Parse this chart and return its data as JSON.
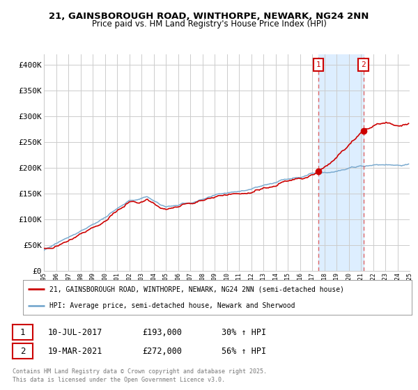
{
  "title_line1": "21, GAINSBOROUGH ROAD, WINTHORPE, NEWARK, NG24 2NN",
  "title_line2": "Price paid vs. HM Land Registry's House Price Index (HPI)",
  "ytick_values": [
    0,
    50000,
    100000,
    150000,
    200000,
    250000,
    300000,
    350000,
    400000
  ],
  "ylabel_ticks": [
    "£0",
    "£50K",
    "£100K",
    "£150K",
    "£200K",
    "£250K",
    "£300K",
    "£350K",
    "£400K"
  ],
  "ylim": [
    0,
    420000
  ],
  "xlim_start": 1995,
  "xlim_end": 2025,
  "sale1_year": 2017.52,
  "sale1_price": 193000,
  "sale2_year": 2021.21,
  "sale2_price": 272000,
  "red_color": "#cc0000",
  "blue_color": "#7aaacf",
  "dashed_color": "#dd6666",
  "shade_color": "#ddeeff",
  "grid_color": "#cccccc",
  "bg_color": "#ffffff",
  "legend_label_red": "21, GAINSBOROUGH ROAD, WINTHORPE, NEWARK, NG24 2NN (semi-detached house)",
  "legend_label_blue": "HPI: Average price, semi-detached house, Newark and Sherwood",
  "sale1_date_str": "10-JUL-2017",
  "sale1_price_str": "£193,000",
  "sale1_hpi_str": "30% ↑ HPI",
  "sale2_date_str": "19-MAR-2021",
  "sale2_price_str": "£272,000",
  "sale2_hpi_str": "56% ↑ HPI",
  "footer": "Contains HM Land Registry data © Crown copyright and database right 2025.\nThis data is licensed under the Open Government Licence v3.0."
}
